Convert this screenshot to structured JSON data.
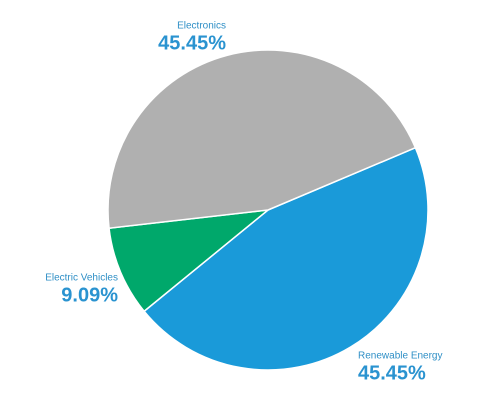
{
  "chart_data": {
    "type": "pie",
    "categories": [
      "Renewable Energy",
      "Electric Vehicles",
      "Electronics"
    ],
    "values": [
      45.45,
      9.09,
      45.45
    ],
    "value_labels": [
      "45.45%",
      "9.09%",
      "45.45%"
    ],
    "colors": [
      "#1a9ad9",
      "#00a86b",
      "#b0b0b0"
    ]
  }
}
